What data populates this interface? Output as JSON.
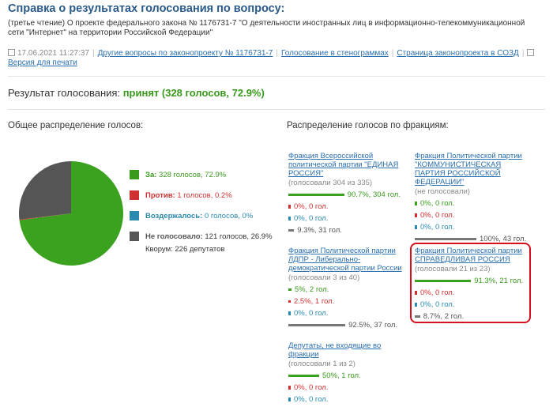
{
  "page": {
    "title": "Справка о результатах голосования по вопросу:",
    "subtitle": "(третье чтение) О проекте федерального закона № 1176731-7 \"О деятельности иностранных лиц в информационно-телекоммуникационной сети \"Интернет\" на территории Российской Федерации\"",
    "timestamp": "17.06.2021 11:27:37",
    "links": {
      "other_questions": "Другие вопросы по законопроекту № 1176731-7",
      "transcripts": "Голосование в стенограммах",
      "sozd_page": "Страница законопроекта в СОЗД",
      "print": "Версия для печати"
    }
  },
  "result": {
    "label": "Результат голосования:",
    "value": "принят (328 голосов, 72.9%)"
  },
  "overall": {
    "heading": "Общее распределение голосов:",
    "legend": [
      {
        "label": "За:",
        "text": "328 голосов, 72.9%",
        "color": "#3a9a1e"
      },
      {
        "label": "Против:",
        "text": "1 голосов, 0.2%",
        "color": "#d03030"
      },
      {
        "label": "Воздержалось:",
        "text": "0 голосов, 0%",
        "color": "#2a8ab0"
      },
      {
        "label": "Не голосовало:",
        "text": "121 голосов, 26.9%",
        "color": "#555555"
      }
    ],
    "quorum": "Кворум: 226 депутатов"
  },
  "chart_data": {
    "type": "pie",
    "categories": [
      "За",
      "Против",
      "Воздержалось",
      "Не голосовало"
    ],
    "values": [
      72.9,
      0.2,
      0,
      26.9
    ],
    "colors": [
      "#3aa21f",
      "#d03030",
      "#2a8ab0",
      "#555555"
    ]
  },
  "factions": {
    "heading": "Распределение голосов по фракциям:",
    "list": [
      {
        "name": "Фракция Всероссийской политической партии \"ЕДИНАЯ РОССИЯ\"",
        "sub": "(голосовали 304 из 335)",
        "rows": [
          {
            "kind": "g",
            "text": "90.7%, 304 гол.",
            "fraction": 0.907
          },
          {
            "kind": "r",
            "text": "0%, 0 гол.",
            "fraction": 0
          },
          {
            "kind": "b",
            "text": "0%, 0 гол.",
            "fraction": 0
          },
          {
            "kind": "k",
            "text": "9.3%, 31 гол.",
            "fraction": 0.093
          }
        ]
      },
      {
        "name": "Фракция Политической партии \"КОММУНИСТИЧЕСКАЯ ПАРТИЯ РОССИЙСКОЙ ФЕДЕРАЦИИ\"",
        "sub": "(не голосовали)",
        "rows": [
          {
            "kind": "g",
            "text": "0%, 0 гол.",
            "fraction": 0
          },
          {
            "kind": "r",
            "text": "0%, 0 гол.",
            "fraction": 0
          },
          {
            "kind": "b",
            "text": "0%, 0 гол.",
            "fraction": 0
          },
          {
            "kind": "k",
            "text": "100%, 43 гол.",
            "fraction": 1
          }
        ]
      },
      {
        "name": "Фракция Политической партии ЛДПР - Либерально-демократической партии России",
        "sub": "(голосовали 3 из 40)",
        "rows": [
          {
            "kind": "g",
            "text": "5%, 2 гол.",
            "fraction": 0.05
          },
          {
            "kind": "r",
            "text": "2.5%, 1 гол.",
            "fraction": 0.025
          },
          {
            "kind": "b",
            "text": "0%, 0 гол.",
            "fraction": 0
          },
          {
            "kind": "k",
            "text": "92.5%, 37 гол.",
            "fraction": 0.925
          }
        ]
      },
      {
        "name": "Фракция Политической партии СПРАВЕДЛИВАЯ РОССИЯ",
        "sub": "(голосовали 21 из 23)",
        "rows": [
          {
            "kind": "g",
            "text": "91.3%, 21 гол.",
            "fraction": 0.913
          },
          {
            "kind": "r",
            "text": "0%, 0 гол.",
            "fraction": 0
          },
          {
            "kind": "b",
            "text": "0%, 0 гол.",
            "fraction": 0
          },
          {
            "kind": "k",
            "text": "8.7%, 2 гол.",
            "fraction": 0.087
          }
        ]
      },
      {
        "name": "Депутаты, не входящие во фракции",
        "sub": "(голосовали 1 из 2)",
        "rows": [
          {
            "kind": "g",
            "text": "50%, 1 гол.",
            "fraction": 0.5
          },
          {
            "kind": "r",
            "text": "0%, 0 гол.",
            "fraction": 0
          },
          {
            "kind": "b",
            "text": "0%, 0 гол.",
            "fraction": 0
          }
        ]
      }
    ]
  }
}
